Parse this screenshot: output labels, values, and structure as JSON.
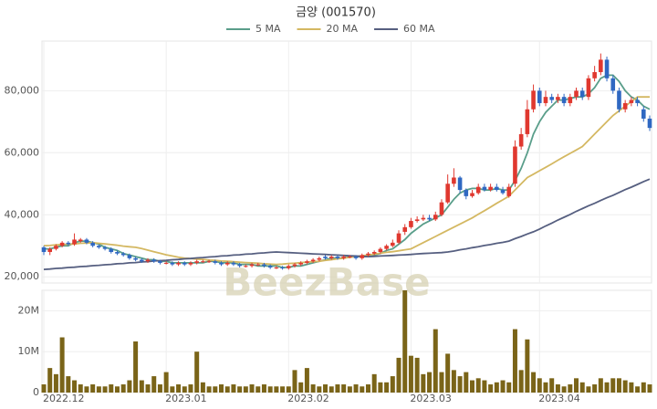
{
  "chart_data": [
    {
      "type": "candlestick",
      "title": "금양 (001570)",
      "annotation": "BeezBase",
      "up_color": "#e0382f",
      "down_color": "#2f68c2",
      "grid": true,
      "legend": "top",
      "open": [
        29500,
        28000,
        29000,
        30000,
        31000,
        30500,
        31500,
        32000,
        31000,
        30000,
        29500,
        29000,
        28000,
        27500,
        27000,
        26000,
        25500,
        25000,
        25500,
        25000,
        24500,
        24500,
        24000,
        24500,
        24000,
        24500,
        25000,
        25000,
        25000,
        24500,
        24000,
        24500,
        24000,
        23500,
        23500,
        24000,
        24000,
        23500,
        23000,
        23000,
        22800,
        23500,
        24000,
        24500,
        25000,
        25500,
        26500,
        26000,
        26500,
        26000,
        26500,
        26500,
        26000,
        27000,
        27500,
        28000,
        29000,
        30000,
        31000,
        34500,
        36000,
        38000,
        38500,
        39000,
        38500,
        40000,
        44000,
        50000,
        52000,
        48000,
        46000,
        47000,
        49000,
        48000,
        49000,
        48000,
        46000,
        50000,
        62000,
        66000,
        74000,
        80000,
        76000,
        78000,
        77000,
        78000,
        76000,
        78000,
        80000,
        78000,
        84000,
        86000,
        90000,
        84000,
        80000,
        74000,
        76000,
        77000,
        74000,
        71000
      ],
      "high": [
        30000,
        29500,
        30500,
        31500,
        31500,
        34000,
        32500,
        32500,
        31500,
        30500,
        30000,
        29500,
        28500,
        28000,
        27500,
        26500,
        26000,
        26000,
        26000,
        25500,
        25000,
        25000,
        25000,
        25000,
        25000,
        25500,
        25500,
        25500,
        25500,
        25000,
        25000,
        25000,
        24500,
        24000,
        24500,
        24500,
        24500,
        24000,
        23500,
        23500,
        24000,
        24500,
        25000,
        25500,
        26000,
        26500,
        27000,
        27000,
        27000,
        27000,
        27000,
        27000,
        27500,
        28000,
        28500,
        29500,
        30500,
        32000,
        35000,
        37000,
        39000,
        39500,
        40000,
        40000,
        41000,
        45000,
        53000,
        55000,
        52500,
        48500,
        48000,
        50000,
        50000,
        50000,
        50000,
        49000,
        50000,
        64000,
        68000,
        77000,
        82000,
        81000,
        80000,
        79000,
        79000,
        79000,
        79000,
        81000,
        81000,
        85000,
        88000,
        92000,
        91000,
        85000,
        81000,
        77000,
        78000,
        78000,
        75000,
        72000
      ],
      "low": [
        27000,
        27000,
        28500,
        29500,
        30000,
        30000,
        31000,
        30500,
        29500,
        29000,
        28500,
        27500,
        27000,
        26500,
        25500,
        25000,
        24500,
        24500,
        24500,
        24000,
        24000,
        23500,
        23500,
        23500,
        23500,
        24000,
        24500,
        24500,
        24000,
        23500,
        23500,
        23500,
        23000,
        23000,
        23000,
        23500,
        23000,
        22500,
        22500,
        22300,
        22300,
        23000,
        23500,
        24000,
        24500,
        25000,
        25500,
        25500,
        25500,
        25500,
        26000,
        25500,
        25500,
        26500,
        27000,
        27500,
        28500,
        29500,
        30500,
        33500,
        35500,
        37500,
        38000,
        38000,
        38000,
        39500,
        43500,
        49000,
        47000,
        45000,
        45500,
        46500,
        47500,
        47500,
        47500,
        46500,
        45500,
        49000,
        61000,
        65000,
        73000,
        75000,
        75000,
        76000,
        76000,
        75000,
        75000,
        77000,
        77000,
        77000,
        83000,
        85000,
        83000,
        79000,
        73000,
        73000,
        75000,
        75000,
        70000,
        67000
      ],
      "close": [
        28000,
        29000,
        30000,
        31000,
        30500,
        32000,
        32000,
        31000,
        30000,
        29500,
        29000,
        28000,
        27500,
        27000,
        26000,
        25500,
        25000,
        25500,
        25000,
        24500,
        24500,
        24000,
        24500,
        24000,
        24500,
        25000,
        25000,
        25000,
        24500,
        24000,
        24500,
        24000,
        23500,
        23500,
        24000,
        24000,
        23500,
        23000,
        23000,
        22800,
        23500,
        24000,
        24500,
        25000,
        25500,
        26000,
        26000,
        26500,
        26000,
        26500,
        26500,
        26000,
        27000,
        27500,
        28000,
        29000,
        30000,
        31000,
        34000,
        36000,
        38000,
        38500,
        39000,
        38500,
        40000,
        44000,
        50000,
        52000,
        48000,
        46000,
        47000,
        49000,
        48000,
        49000,
        48000,
        47000,
        49000,
        62000,
        66000,
        74000,
        80000,
        76000,
        78000,
        77000,
        78000,
        76000,
        78000,
        80000,
        78000,
        84000,
        86000,
        90000,
        84000,
        80000,
        74000,
        76000,
        77000,
        76000,
        71000,
        68000
      ],
      "series": [
        {
          "name": "5 MA",
          "color": "#5a9e8a",
          "values": [
            29000,
            29000,
            29500,
            30000,
            30000,
            31000,
            31500,
            31500,
            31000,
            30500,
            29500,
            29000,
            28500,
            27500,
            27000,
            26500,
            26000,
            25500,
            25500,
            25000,
            25000,
            24500,
            24500,
            24500,
            24500,
            24500,
            24500,
            25000,
            25000,
            24500,
            24500,
            24500,
            24000,
            24000,
            24000,
            23500,
            23500,
            23500,
            23500,
            23000,
            23000,
            23500,
            23500,
            24000,
            24500,
            25000,
            25500,
            26000,
            26000,
            26000,
            26500,
            26500,
            26500,
            26500,
            27000,
            27500,
            28500,
            29000,
            30500,
            32000,
            34000,
            35500,
            37000,
            38000,
            39000,
            40000,
            42500,
            45000,
            47000,
            48000,
            48500,
            48500,
            48000,
            48000,
            48500,
            48000,
            48000,
            51000,
            55000,
            60000,
            66000,
            70000,
            73000,
            75000,
            77000,
            77000,
            77500,
            78000,
            78000,
            79000,
            81000,
            84000,
            85000,
            85000,
            83000,
            80000,
            78000,
            77000,
            75000,
            74000
          ]
        },
        {
          "name": "20 MA",
          "color": "#d4b862",
          "values": [
            30000,
            30100,
            30300,
            30400,
            30500,
            30600,
            30800,
            30900,
            31000,
            30800,
            30600,
            30400,
            30200,
            29900,
            29700,
            29500,
            29100,
            28600,
            28100,
            27600,
            27100,
            26700,
            26300,
            26000,
            25900,
            25700,
            25600,
            25400,
            25300,
            25100,
            25000,
            24900,
            24700,
            24600,
            24500,
            24400,
            24200,
            24100,
            24000,
            24100,
            24300,
            24400,
            24600,
            24700,
            24900,
            25000,
            25300,
            25500,
            25800,
            26000,
            26300,
            26500,
            26800,
            27000,
            27300,
            27600,
            27900,
            28100,
            28400,
            28700,
            29000,
            30000,
            31000,
            32000,
            33000,
            34000,
            35000,
            36000,
            37000,
            38000,
            39000,
            40200,
            41300,
            42500,
            43700,
            44800,
            46000,
            48000,
            50000,
            52000,
            53100,
            54200,
            55300,
            56400,
            57600,
            58700,
            59800,
            60900,
            62000,
            64000,
            66000,
            68000,
            70000,
            72000,
            73500,
            75000,
            76500,
            78000,
            78000,
            78000
          ]
        },
        {
          "name": "60 MA",
          "color": "#565f80",
          "values": [
            22400,
            22500,
            22700,
            22800,
            23000,
            23100,
            23300,
            23400,
            23600,
            23700,
            23900,
            24000,
            24200,
            24300,
            24500,
            24600,
            24800,
            24900,
            25100,
            25200,
            25300,
            25500,
            25600,
            25800,
            25900,
            26100,
            26200,
            26400,
            26500,
            26700,
            26800,
            27000,
            27100,
            27300,
            27400,
            27600,
            27700,
            27900,
            28000,
            27900,
            27800,
            27700,
            27600,
            27500,
            27400,
            27300,
            27200,
            27100,
            27000,
            26900,
            26800,
            26700,
            26600,
            26500,
            26600,
            26700,
            26800,
            26900,
            27000,
            27100,
            27200,
            27400,
            27500,
            27600,
            27700,
            27800,
            28000,
            28300,
            28700,
            29000,
            29400,
            29700,
            30100,
            30400,
            30800,
            31100,
            31500,
            32300,
            33000,
            33800,
            34500,
            35400,
            36400,
            37300,
            38300,
            39200,
            40100,
            41100,
            42000,
            42900,
            43700,
            44600,
            45500,
            46300,
            47200,
            48100,
            48900,
            49800,
            50700,
            51500
          ]
        }
      ],
      "ylim": [
        18000,
        96000
      ],
      "yticks": [
        {
          "value": 20000,
          "label": "20,000"
        },
        {
          "value": 40000,
          "label": "40,000"
        },
        {
          "value": 60000,
          "label": "60,000"
        },
        {
          "value": 80000,
          "label": "80,000"
        }
      ]
    },
    {
      "type": "bar",
      "color": "#7a6418",
      "grid": true,
      "categories": [
        "2022.12",
        null,
        null,
        null,
        null,
        null,
        null,
        null,
        null,
        null,
        null,
        null,
        null,
        null,
        null,
        null,
        null,
        null,
        null,
        null,
        "2023.01",
        null,
        null,
        null,
        null,
        null,
        null,
        null,
        null,
        null,
        null,
        null,
        null,
        null,
        null,
        null,
        null,
        null,
        null,
        null,
        "2023.02",
        null,
        null,
        null,
        null,
        null,
        null,
        null,
        null,
        null,
        null,
        null,
        null,
        null,
        null,
        null,
        null,
        null,
        null,
        null,
        "2023.03",
        null,
        null,
        null,
        null,
        null,
        null,
        null,
        null,
        null,
        null,
        null,
        null,
        null,
        null,
        null,
        null,
        null,
        null,
        null,
        null,
        "2023.04",
        null,
        null,
        null,
        null,
        null,
        null,
        null,
        null,
        null,
        null,
        null,
        null,
        null,
        null,
        null,
        null,
        null,
        null
      ],
      "values": [
        2000000,
        6000000,
        4500000,
        13500000,
        4000000,
        3000000,
        2000000,
        1500000,
        2000000,
        1500000,
        1500000,
        2000000,
        1500000,
        2000000,
        3000000,
        12500000,
        3000000,
        2000000,
        4000000,
        2000000,
        5000000,
        1500000,
        2000000,
        1500000,
        2000000,
        10000000,
        2500000,
        1500000,
        1500000,
        2000000,
        1500000,
        2000000,
        1500000,
        1500000,
        2000000,
        1500000,
        2000000,
        1500000,
        1500000,
        1500000,
        1500000,
        5500000,
        2500000,
        6000000,
        2000000,
        1500000,
        2000000,
        1500000,
        2000000,
        2000000,
        1500000,
        2000000,
        1500000,
        2000000,
        4500000,
        2500000,
        2500000,
        4000000,
        8500000,
        25000000,
        9000000,
        8500000,
        4500000,
        5000000,
        15500000,
        5000000,
        9500000,
        5500000,
        4000000,
        5000000,
        3000000,
        3500000,
        3000000,
        2000000,
        2500000,
        3000000,
        2500000,
        15500000,
        5500000,
        13000000,
        5000000,
        3500000,
        2500000,
        3500000,
        2000000,
        1500000,
        2000000,
        3500000,
        2500000,
        1500000,
        2000000,
        3500000,
        2500000,
        3500000,
        3500000,
        3000000,
        2500000,
        1500000,
        2500000,
        2000000
      ],
      "ylim": [
        0,
        25000000
      ],
      "yticks": [
        0,
        {
          "value": 10000000,
          "label": "10M"
        },
        {
          "value": 20000000,
          "label": "20M"
        }
      ]
    }
  ]
}
